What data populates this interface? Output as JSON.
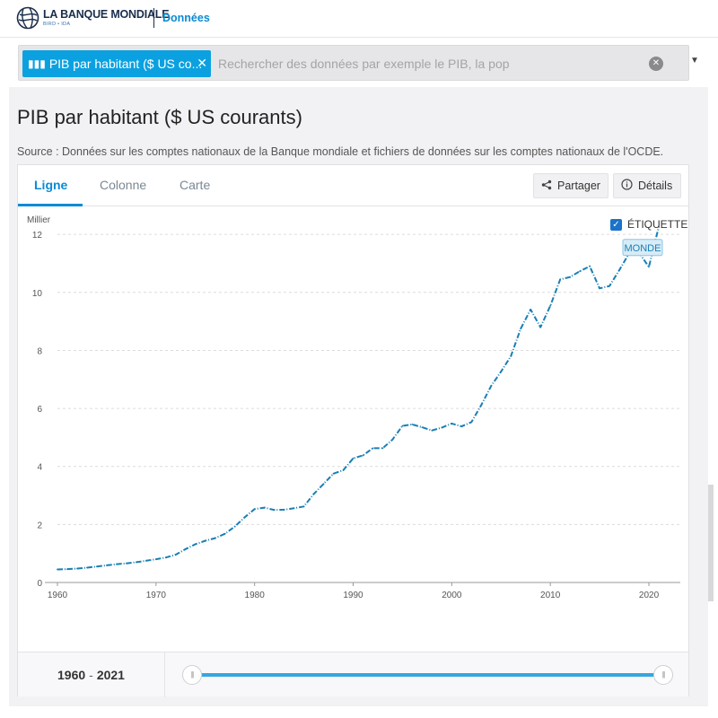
{
  "header": {
    "logo_main": "LA BANQUE MONDIALE",
    "logo_sub": "BIRD • IDA",
    "nav_link": "Données"
  },
  "search": {
    "chip_label": "PIB par habitant ($ US co...",
    "chip_close": "✕",
    "placeholder": "Rechercher des données par exemple le PIB, la pop",
    "clear_symbol": "✕",
    "dropdown_symbol": "▼"
  },
  "page": {
    "title": "PIB par habitant ($ US courants)",
    "source": "Source : Données sur les comptes nationaux de la Banque mondiale et fichiers de données sur les comptes nationaux de l'OCDE."
  },
  "tabs": [
    {
      "label": "Ligne"
    },
    {
      "label": "Colonne"
    },
    {
      "label": "Carte"
    }
  ],
  "actions": {
    "share_label": "Partager",
    "details_label": "Détails"
  },
  "label_toggle": {
    "label": "ÉTIQUETTE",
    "checked": true
  },
  "range": {
    "start": "1960",
    "sep": "-",
    "end": "2021",
    "handle_symbol": "|||"
  },
  "colors": {
    "accent": "#0b8bd3",
    "line": "#1a7fb5",
    "chip": "#0ba1e0"
  },
  "chart_data": {
    "type": "line",
    "title": "PIB par habitant ($ US courants)",
    "ylabel": "Millier",
    "xlabel": "",
    "xlim": [
      1960,
      2021
    ],
    "ylim": [
      0,
      12.5
    ],
    "x_ticks": [
      1960,
      1970,
      1980,
      1990,
      2000,
      2010,
      2020
    ],
    "y_ticks": [
      0,
      2,
      4,
      6,
      8,
      10,
      12
    ],
    "grid": true,
    "series": [
      {
        "name": "MONDE",
        "x": [
          1960,
          1961,
          1962,
          1963,
          1964,
          1965,
          1966,
          1967,
          1968,
          1969,
          1970,
          1971,
          1972,
          1973,
          1974,
          1975,
          1976,
          1977,
          1978,
          1979,
          1980,
          1981,
          1982,
          1983,
          1984,
          1985,
          1986,
          1987,
          1988,
          1989,
          1990,
          1991,
          1992,
          1993,
          1994,
          1995,
          1996,
          1997,
          1998,
          1999,
          2000,
          2001,
          2002,
          2003,
          2004,
          2005,
          2006,
          2007,
          2008,
          2009,
          2010,
          2011,
          2012,
          2013,
          2014,
          2015,
          2016,
          2017,
          2018,
          2019,
          2020,
          2021
        ],
        "values": [
          0.45,
          0.46,
          0.48,
          0.51,
          0.55,
          0.59,
          0.63,
          0.66,
          0.7,
          0.75,
          0.8,
          0.86,
          0.96,
          1.15,
          1.32,
          1.44,
          1.53,
          1.68,
          1.93,
          2.25,
          2.53,
          2.58,
          2.5,
          2.51,
          2.56,
          2.62,
          3.05,
          3.4,
          3.75,
          3.87,
          4.28,
          4.38,
          4.63,
          4.63,
          4.93,
          5.4,
          5.45,
          5.35,
          5.24,
          5.34,
          5.48,
          5.38,
          5.53,
          6.12,
          6.78,
          7.27,
          7.8,
          8.75,
          9.41,
          8.8,
          9.54,
          10.45,
          10.53,
          10.73,
          10.9,
          10.14,
          10.22,
          10.77,
          11.35,
          11.37,
          10.88,
          12.26
        ]
      }
    ],
    "series_label": "MONDE",
    "legend": "end-of-line label"
  }
}
